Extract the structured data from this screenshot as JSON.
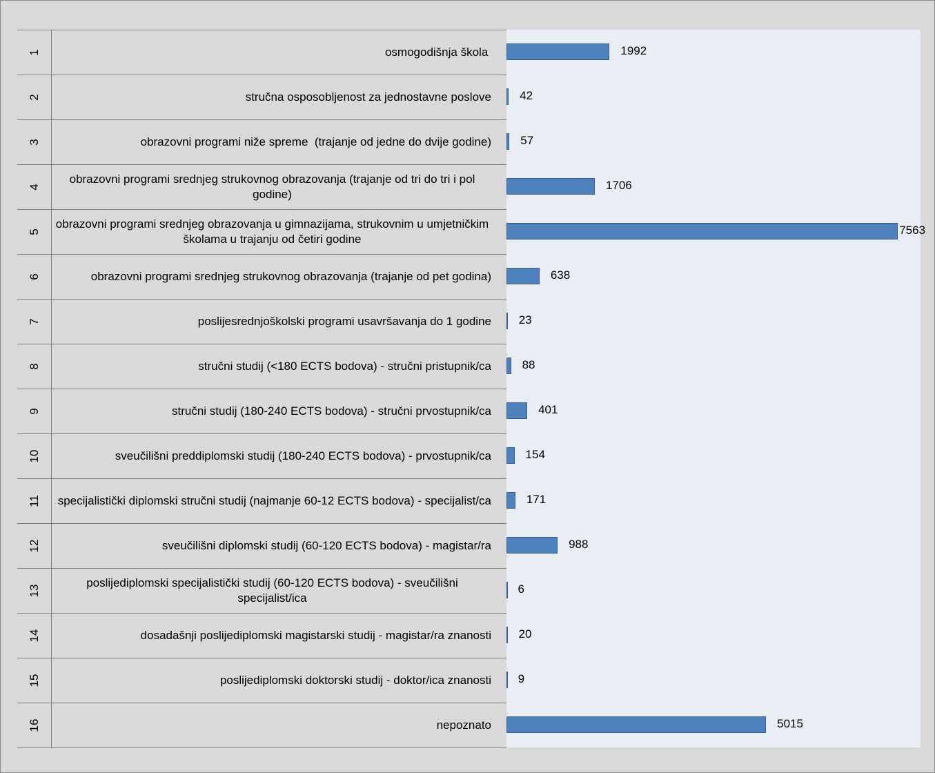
{
  "chart_data": {
    "type": "bar",
    "orientation": "horizontal",
    "category_numbers": [
      "1",
      "2",
      "3",
      "4",
      "5",
      "6",
      "7",
      "8",
      "9",
      "10",
      "11",
      "12",
      "13",
      "14",
      "15",
      "16"
    ],
    "categories": [
      "osmogodišnja škola ",
      "stručna osposobljenost za jednostavne poslove",
      "obrazovni programi niže spreme  (trajanje od jedne do dvije godine)",
      "obrazovni programi srednjeg strukovnog obrazovanja (trajanje od tri do tri i pol godine)",
      "obrazovni programi srednjeg obrazovanja u gimnazijama, strukovnim u umjetničkim školama u trajanju od četiri godine",
      "obrazovni programi srednjeg strukovnog obrazovanja (trajanje od pet godina)",
      "poslijesrednjoškolski programi usavršavanja do 1 godine",
      "stručni studij (<180 ECTS bodova) - stručni pristupnik/ca",
      "stručni studij (180-240 ECTS bodova) - stručni prvostupnik/ca",
      "sveučilišni preddiplomski studij (180-240 ECTS bodova) - prvostupnik/ca",
      "specijalistički diplomski stručni studij (najmanje 60-12 ECTS bodova) - specijalist/ca",
      "sveučilišni diplomski studij (60-120 ECTS bodova) - magistar/ra",
      "poslijediplomski specijalistički studij (60-120 ECTS bodova) - sveučilišni specijalist/ica",
      "dosadašnji poslijediplomski magistarski studij - magistar/ra znanosti",
      "poslijediplomski doktorski studij - doktor/ica znanosti",
      "nepoznato"
    ],
    "values": [
      1992,
      42,
      57,
      1706,
      7563,
      638,
      23,
      88,
      401,
      154,
      171,
      988,
      6,
      20,
      9,
      5015
    ],
    "color": "#4f81bd",
    "xlim": [
      0,
      8000
    ]
  }
}
